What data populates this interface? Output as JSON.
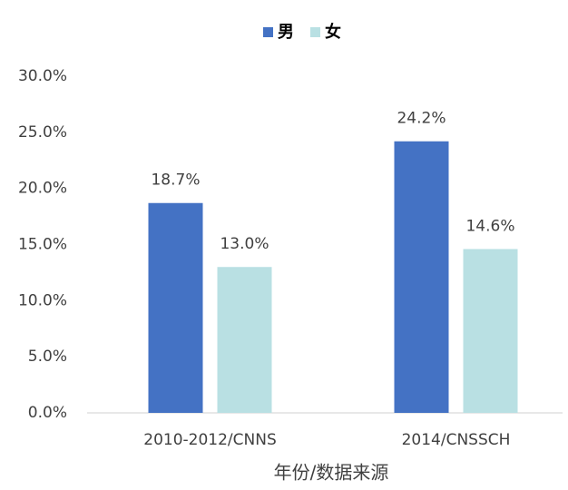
{
  "chart_data": {
    "type": "bar",
    "categories": [
      "2010-2012/CNNS",
      "2014/CNSSCH"
    ],
    "series": [
      {
        "name": "男",
        "color": "#4472c4",
        "values": [
          18.7,
          24.2
        ],
        "value_labels": [
          "18.7%",
          "24.2%"
        ]
      },
      {
        "name": "女",
        "color": "#b9e0e3",
        "values": [
          13.0,
          14.6
        ],
        "value_labels": [
          "13.0%",
          "14.6%"
        ]
      }
    ],
    "xlabel": "年份/数据来源",
    "ylim": [
      0,
      30
    ],
    "yticks": [
      {
        "value": 0,
        "label": "0.0%"
      },
      {
        "value": 5,
        "label": "5.0%"
      },
      {
        "value": 10,
        "label": "10.0%"
      },
      {
        "value": 15,
        "label": "15.0%"
      },
      {
        "value": 20,
        "label": "20.0%"
      },
      {
        "value": 25,
        "label": "25.0%"
      },
      {
        "value": 30,
        "label": "30.0%"
      }
    ],
    "legend": "top"
  }
}
